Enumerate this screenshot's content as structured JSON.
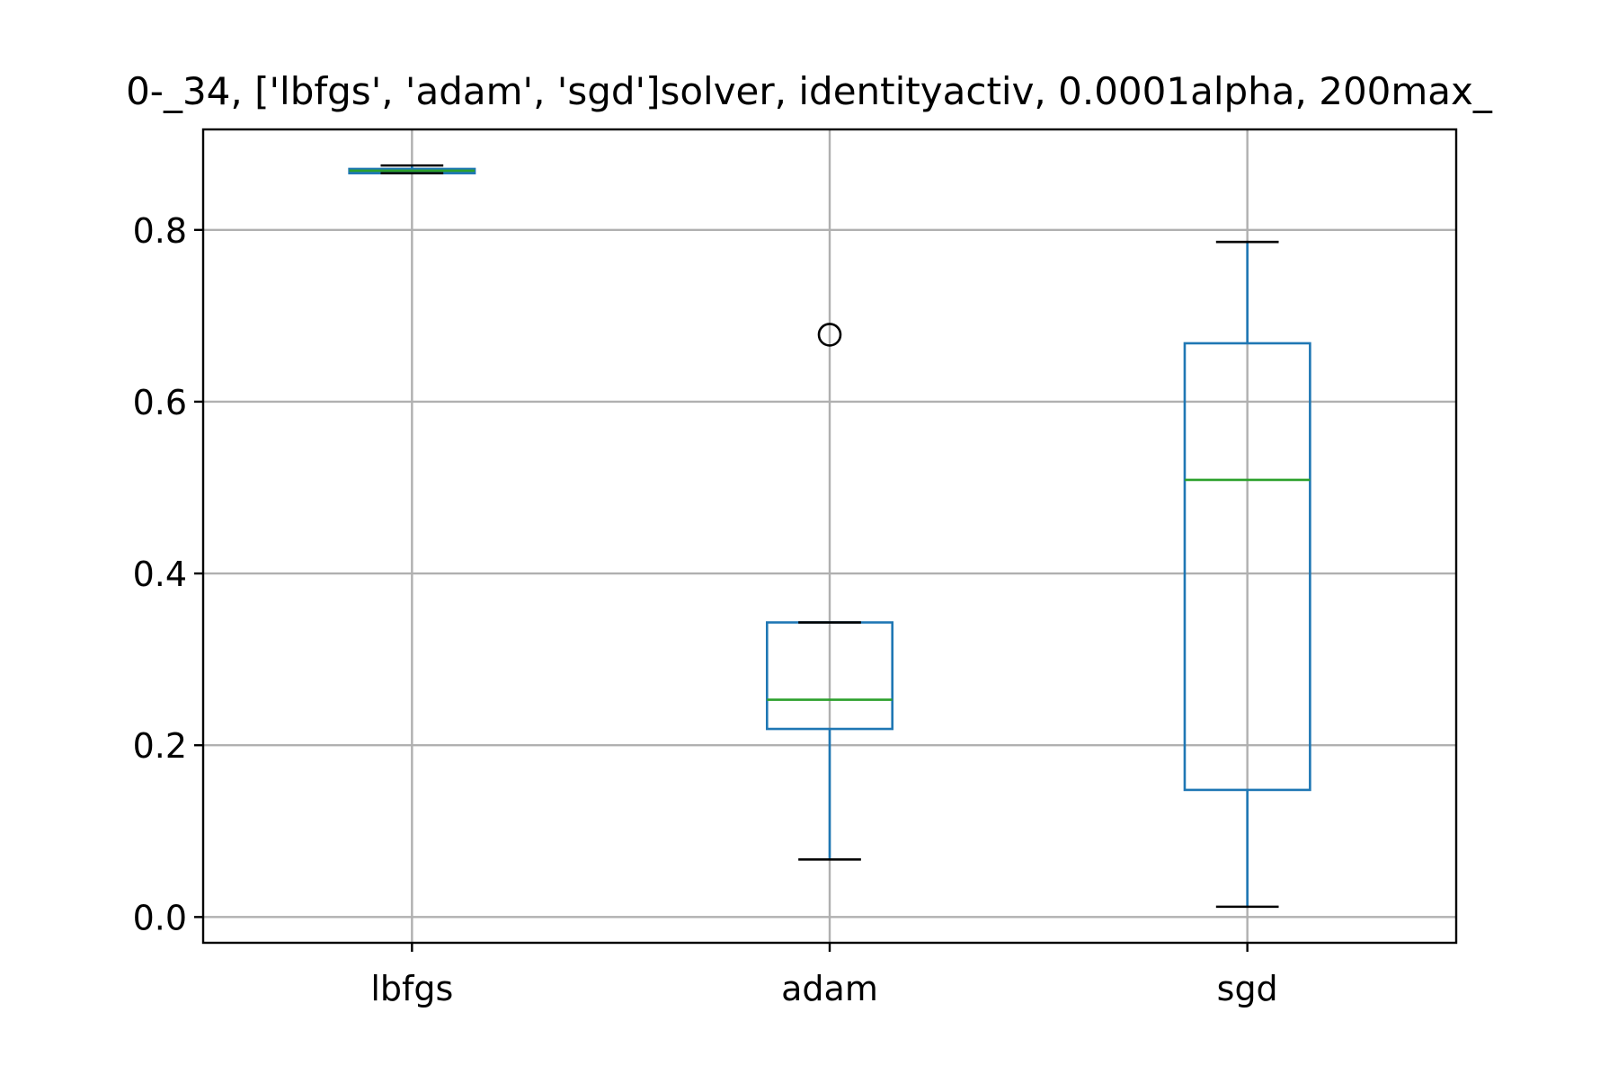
{
  "chart_data": {
    "type": "boxplot",
    "title": "0-_34, ['lbfgs', 'adam', 'sgd']solver, identityactiv, 0.0001alpha, 200max_",
    "xlabel": "",
    "ylabel": "",
    "categories": [
      "lbfgs",
      "adam",
      "sgd"
    ],
    "yticks": [
      "0.0",
      "0.2",
      "0.4",
      "0.6",
      "0.8"
    ],
    "ylim": [
      -0.03,
      0.917
    ],
    "grid": true,
    "colors": {
      "box": "#1f77b4",
      "median": "#2ca02c",
      "cap": "#000000",
      "flier": "#000000",
      "grid": "#b0b0b0",
      "lbfgs_fill": "#2d8c7e"
    },
    "boxes": [
      {
        "name": "lbfgs",
        "whisker_low": 0.866,
        "q1": 0.866,
        "median": 0.869,
        "q3": 0.871,
        "whisker_high": 0.875,
        "fliers": []
      },
      {
        "name": "adam",
        "whisker_low": 0.067,
        "q1": 0.219,
        "median": 0.253,
        "q3": 0.343,
        "whisker_high": 0.343,
        "fliers": [
          0.678
        ]
      },
      {
        "name": "sgd",
        "whisker_low": 0.012,
        "q1": 0.148,
        "median": 0.509,
        "q3": 0.668,
        "whisker_high": 0.786,
        "fliers": []
      }
    ]
  }
}
